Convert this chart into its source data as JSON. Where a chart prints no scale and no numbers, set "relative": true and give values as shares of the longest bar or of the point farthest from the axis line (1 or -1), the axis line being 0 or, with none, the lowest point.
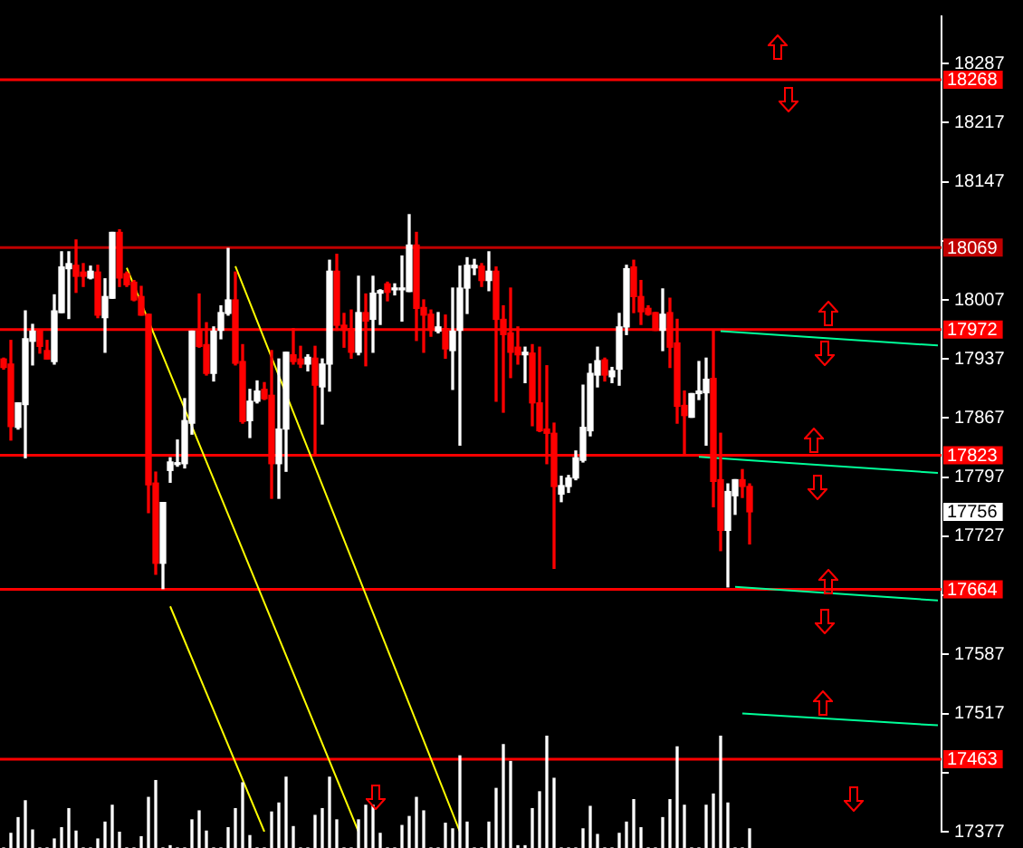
{
  "chart_data": [
    {
      "type": "candlestick",
      "legend": false,
      "grid": false,
      "tick_labels": "y",
      "categories": [
        null,
        null,
        null,
        null,
        null,
        null,
        null,
        null,
        null,
        null,
        null,
        null,
        null,
        null,
        null,
        null,
        null,
        null,
        null,
        null,
        null,
        null,
        null,
        null,
        null,
        null,
        null,
        null,
        null,
        null,
        null,
        null,
        null,
        null,
        null,
        null,
        null,
        null,
        null,
        null,
        null,
        null,
        null,
        null,
        null,
        null,
        null,
        null,
        null,
        null,
        null,
        null,
        null,
        null,
        null,
        null,
        null,
        null,
        null,
        null,
        null,
        null,
        null,
        null,
        null,
        null,
        null,
        null,
        null,
        null,
        null,
        null,
        null,
        null,
        null,
        null,
        null,
        null,
        null,
        null,
        null,
        null,
        null,
        null,
        null,
        null,
        null,
        null,
        null,
        null,
        null,
        null,
        null,
        null,
        null,
        null,
        null,
        null,
        null,
        null,
        null,
        null,
        null,
        null,
        null,
        null,
        null,
        null,
        null,
        null,
        null,
        null,
        null,
        null,
        null,
        null,
        null,
        null,
        null,
        null,
        null,
        null,
        null,
        null,
        null,
        null,
        null,
        null,
        null,
        null
      ],
      "ohlc": [
        [
          17937,
          17938,
          17925,
          17927
        ],
        [
          17931,
          17959,
          17841,
          17857
        ],
        [
          17856,
          17885,
          17854,
          17885
        ],
        [
          17883,
          17994,
          17820,
          17961
        ],
        [
          17958,
          17978,
          17930,
          17970
        ],
        [
          17970,
          17970,
          17944,
          17952
        ],
        [
          17947,
          17959,
          17937,
          17937
        ],
        [
          17934,
          18013,
          17931,
          17994
        ],
        [
          17992,
          18064,
          17992,
          18046
        ],
        [
          18044,
          18064,
          17985,
          18050
        ],
        [
          18048,
          18078,
          18016,
          18035
        ],
        [
          18040,
          18050,
          18023,
          18035
        ],
        [
          18033,
          18047,
          18032,
          18041
        ],
        [
          18040,
          18048,
          17986,
          17989
        ],
        [
          17986,
          18032,
          17945,
          18011
        ],
        [
          18009,
          18087,
          18009,
          18087
        ],
        [
          18087,
          18090,
          18023,
          18033
        ],
        [
          18038,
          18040,
          18023,
          18025
        ],
        [
          18028,
          18030,
          18006,
          18007
        ],
        [
          18011,
          18023,
          17989,
          17989
        ],
        [
          17990,
          17990,
          17755,
          17788
        ],
        [
          17790,
          17803,
          17682,
          17695
        ],
        [
          17695,
          17767,
          17665,
          17767
        ],
        [
          17805,
          17820,
          17791,
          17815
        ],
        [
          17812,
          17841,
          17810,
          17813
        ],
        [
          17813,
          17890,
          17808,
          17864
        ],
        [
          17861,
          17970,
          17848,
          17970
        ],
        [
          17970,
          18014,
          17951,
          17952
        ],
        [
          17954,
          17980,
          17918,
          17920
        ],
        [
          17920,
          17975,
          17911,
          17970
        ],
        [
          17971,
          18000,
          17961,
          17992
        ],
        [
          17991,
          18068,
          17989,
          18007
        ],
        [
          18007,
          18040,
          17930,
          17932
        ],
        [
          17934,
          17954,
          17861,
          17863
        ],
        [
          17864,
          17901,
          17844,
          17887
        ],
        [
          17887,
          17911,
          17885,
          17899
        ],
        [
          17901,
          17909,
          17889,
          17890
        ],
        [
          17894,
          17947,
          17772,
          17813
        ],
        [
          17813,
          17937,
          17772,
          17854
        ],
        [
          17854,
          17945,
          17804,
          17945
        ],
        [
          17942,
          17973,
          17931,
          17934
        ],
        [
          17937,
          17952,
          17927,
          17931
        ],
        [
          17931,
          17942,
          17923,
          17939
        ],
        [
          17938,
          17952,
          17823,
          17906
        ],
        [
          17904,
          17937,
          17860,
          17931
        ],
        [
          17931,
          18054,
          17899,
          18041
        ],
        [
          18041,
          18061,
          17971,
          17977
        ],
        [
          17977,
          17991,
          17951,
          17971
        ],
        [
          17973,
          17995,
          17938,
          17945
        ],
        [
          17945,
          18035,
          17942,
          17992
        ],
        [
          17992,
          18014,
          17929,
          17982
        ],
        [
          17984,
          18035,
          17945,
          18015
        ],
        [
          18015,
          18019,
          17978,
          18018
        ],
        [
          18026,
          18028,
          18006,
          18016
        ],
        [
          18019,
          18026,
          18013,
          18021
        ],
        [
          18019,
          18059,
          17982,
          18021
        ],
        [
          18017,
          18108,
          18017,
          18072
        ],
        [
          18072,
          18087,
          17959,
          17997
        ],
        [
          17998,
          18007,
          17945,
          17989
        ],
        [
          17990,
          17995,
          17964,
          17971
        ],
        [
          17970,
          17992,
          17968,
          17975
        ],
        [
          17973,
          17989,
          17938,
          17949
        ],
        [
          17947,
          18021,
          17901,
          17970
        ],
        [
          17971,
          18047,
          17835,
          18021
        ],
        [
          18021,
          18057,
          17991,
          18048
        ],
        [
          18045,
          18055,
          18037,
          18048
        ],
        [
          18047,
          18050,
          18023,
          18030
        ],
        [
          18030,
          18064,
          18018,
          18041
        ],
        [
          18041,
          18046,
          17887,
          17984
        ],
        [
          17984,
          18000,
          17874,
          17966
        ],
        [
          17968,
          18021,
          17915,
          17945
        ],
        [
          17951,
          17975,
          17931,
          17942
        ],
        [
          17942,
          17951,
          17909,
          17945
        ],
        [
          17944,
          17954,
          17858,
          17885
        ],
        [
          17885,
          17951,
          17851,
          17852
        ],
        [
          17854,
          17929,
          17813,
          17849
        ],
        [
          17849,
          17861,
          17689,
          17786
        ],
        [
          17777,
          17798,
          17768,
          17787
        ],
        [
          17786,
          17799,
          17779,
          17796
        ],
        [
          17796,
          17828,
          17794,
          17820
        ],
        [
          17817,
          17906,
          17815,
          17856
        ],
        [
          17852,
          17931,
          17846,
          17920
        ],
        [
          17918,
          17951,
          17904,
          17935
        ],
        [
          17936,
          17938,
          17911,
          17918
        ],
        [
          17916,
          17927,
          17909,
          17923
        ],
        [
          17925,
          17991,
          17906,
          17975
        ],
        [
          17975,
          18048,
          17966,
          18044
        ],
        [
          18046,
          18054,
          17992,
          18011
        ],
        [
          18011,
          18030,
          17978,
          17993
        ],
        [
          17997,
          18000,
          17989,
          17990
        ],
        [
          17992,
          17992,
          17971,
          17971
        ],
        [
          17971,
          18020,
          17947,
          17990
        ],
        [
          17992,
          18009,
          17927,
          17951
        ],
        [
          17956,
          17984,
          17861,
          17881
        ],
        [
          17882,
          17899,
          17823,
          17870
        ],
        [
          17868,
          17896,
          17868,
          17896
        ],
        [
          17896,
          17934,
          17889,
          17899
        ],
        [
          17897,
          17938,
          17835,
          17913
        ],
        [
          17914,
          17971,
          17762,
          17792
        ],
        [
          17794,
          17849,
          17710,
          17734
        ],
        [
          17734,
          17789,
          17667,
          17780
        ],
        [
          17775,
          17794,
          17753,
          17794
        ],
        [
          17794,
          17806,
          17773,
          17786
        ],
        [
          17786,
          17789,
          17718,
          17756
        ],
        null,
        null,
        null,
        null,
        null,
        null,
        null,
        null,
        null,
        null,
        null,
        null,
        null,
        null,
        null,
        null,
        null,
        null,
        null,
        null,
        null,
        null,
        null,
        null,
        null,
        null
      ],
      "colors": [
        "#ff0000",
        "#ff0000",
        "#ffffff",
        "#ffffff",
        "#ffffff",
        "#ff0000",
        "#ff0000",
        "#ffffff",
        "#ffffff",
        "#ffffff",
        "#ff0000",
        "#ff0000",
        "#ffffff",
        "#ff0000",
        "#ffffff",
        "#ffffff",
        "#ff0000",
        "#ff0000",
        "#ff0000",
        "#ff0000",
        "#ff0000",
        "#ff0000",
        "#ffffff",
        "#ffffff",
        "#ffffff",
        "#ffffff",
        "#ffffff",
        "#ff0000",
        "#ff0000",
        "#ffffff",
        "#ffffff",
        "#ffffff",
        "#ff0000",
        "#ff0000",
        "#ffffff",
        "#ffffff",
        "#ff0000",
        "#ff0000",
        "#ffffff",
        "#ffffff",
        "#ff0000",
        "#ff0000",
        "#ffffff",
        "#ff0000",
        "#ffffff",
        "#ffffff",
        "#ff0000",
        "#ff0000",
        "#ff0000",
        "#ffffff",
        "#ff0000",
        "#ffffff",
        "#ffffff",
        "#ff0000",
        "#ffffff",
        "#ffffff",
        "#ffffff",
        "#ff0000",
        "#ff0000",
        "#ff0000",
        "#ffffff",
        "#ff0000",
        "#ffffff",
        "#ffffff",
        "#ffffff",
        "#ffffff",
        "#ff0000",
        "#ffffff",
        "#ff0000",
        "#ff0000",
        "#ff0000",
        "#ff0000",
        "#ffffff",
        "#ff0000",
        "#ff0000",
        "#ff0000",
        "#ff0000",
        "#ffffff",
        "#ffffff",
        "#ffffff",
        "#ffffff",
        "#ffffff",
        "#ffffff",
        "#ff0000",
        "#ffffff",
        "#ffffff",
        "#ffffff",
        "#ff0000",
        "#ff0000",
        "#ff0000",
        "#ff0000",
        "#ffffff",
        "#ff0000",
        "#ff0000",
        "#ff0000",
        "#ffffff",
        "#ffffff",
        "#ffffff",
        "#ff0000",
        "#ff0000",
        "#ffffff",
        "#ffffff",
        "#ff0000",
        "#ff0000",
        null,
        null,
        null,
        null,
        null,
        null,
        null,
        null,
        null,
        null,
        null,
        null,
        null,
        null,
        null,
        null,
        null,
        null,
        null,
        null,
        null,
        null,
        null,
        null,
        null,
        null
      ],
      "series": [
        {
          "type": "line",
          "color": "#ffff00",
          "values": [
            null,
            null,
            null,
            null,
            null,
            null,
            null,
            null,
            null,
            null,
            null,
            null,
            null,
            null,
            null,
            null,
            null,
            18045,
            null,
            null,
            null,
            null,
            null,
            null,
            null,
            null,
            null,
            null,
            null,
            null,
            null,
            null,
            null,
            null,
            null,
            null,
            null,
            null,
            null,
            null,
            null,
            null,
            null,
            null,
            null,
            null,
            null,
            null,
            null,
            17377,
            null,
            null,
            null,
            null,
            null,
            null,
            null,
            null,
            null,
            null,
            null,
            null,
            null,
            null,
            null,
            null,
            null,
            null,
            null,
            null,
            null,
            null,
            null,
            null,
            null,
            null,
            null,
            null,
            null,
            null,
            null,
            null,
            null,
            null,
            null,
            null,
            null,
            null,
            null,
            null,
            null,
            null,
            null,
            null,
            null,
            null,
            null,
            null,
            null,
            null,
            null,
            null,
            null,
            null,
            null,
            null,
            null,
            null,
            null,
            null,
            null,
            null,
            null,
            null,
            null,
            null,
            null,
            null,
            null,
            null,
            null,
            null,
            null,
            null,
            null,
            null,
            null,
            null,
            null,
            null
          ]
        },
        {
          "type": "line",
          "color": "#ffff00",
          "values": [
            null,
            null,
            null,
            null,
            null,
            null,
            null,
            null,
            null,
            null,
            null,
            null,
            null,
            null,
            null,
            null,
            null,
            null,
            null,
            null,
            null,
            null,
            null,
            null,
            null,
            null,
            null,
            null,
            null,
            null,
            null,
            null,
            18047,
            null,
            null,
            null,
            null,
            null,
            null,
            null,
            null,
            null,
            null,
            null,
            null,
            null,
            null,
            null,
            null,
            null,
            null,
            null,
            null,
            null,
            null,
            null,
            null,
            null,
            null,
            null,
            null,
            null,
            null,
            17377,
            null,
            null,
            null,
            null,
            null,
            null,
            null,
            null,
            null,
            null,
            null,
            null,
            null,
            null,
            null,
            null,
            null,
            null,
            null,
            null,
            null,
            null,
            null,
            null,
            null,
            null,
            null,
            null,
            null,
            null,
            null,
            null,
            null,
            null,
            null,
            null,
            null,
            null,
            null,
            null,
            null,
            null,
            null,
            null,
            null,
            null,
            null,
            null,
            null,
            null,
            null,
            null,
            null,
            null,
            null,
            null,
            null,
            null,
            null,
            null,
            null,
            null,
            null,
            null,
            null,
            null
          ]
        },
        {
          "type": "line",
          "color": "#ffff00",
          "values": [
            null,
            null,
            null,
            null,
            null,
            null,
            null,
            null,
            null,
            null,
            null,
            null,
            null,
            null,
            null,
            null,
            null,
            null,
            null,
            null,
            null,
            null,
            null,
            17644,
            null,
            null,
            null,
            null,
            null,
            null,
            null,
            null,
            null,
            null,
            null,
            null,
            17377,
            null,
            null,
            null,
            null,
            null,
            null,
            null,
            null,
            null,
            null,
            null,
            null,
            null,
            null,
            null,
            null,
            null,
            null,
            null,
            null,
            null,
            null,
            null,
            null,
            null,
            null,
            null,
            null,
            null,
            null,
            null,
            null,
            null,
            null,
            null,
            null,
            null,
            null,
            null,
            null,
            null,
            null,
            null,
            null,
            null,
            null,
            null,
            null,
            null,
            null,
            null,
            null,
            null,
            null,
            null,
            null,
            null,
            null,
            null,
            null,
            null,
            null,
            null,
            null,
            null,
            null,
            null,
            null,
            null,
            null,
            null,
            null,
            null,
            null,
            null,
            null,
            null,
            null,
            null,
            null,
            null,
            null,
            null,
            null,
            null,
            null,
            null,
            null,
            null,
            null,
            null,
            null,
            null
          ]
        },
        {
          "type": "line",
          "color": "#00ff99",
          "values": [
            null,
            null,
            null,
            null,
            null,
            null,
            null,
            null,
            null,
            null,
            null,
            null,
            null,
            null,
            null,
            null,
            null,
            null,
            null,
            null,
            null,
            null,
            null,
            null,
            null,
            null,
            null,
            null,
            null,
            null,
            null,
            null,
            null,
            null,
            null,
            null,
            null,
            null,
            null,
            null,
            null,
            null,
            null,
            null,
            null,
            null,
            null,
            null,
            null,
            null,
            null,
            null,
            null,
            null,
            null,
            null,
            null,
            null,
            null,
            null,
            null,
            null,
            null,
            null,
            null,
            null,
            null,
            null,
            null,
            null,
            null,
            null,
            null,
            null,
            null,
            null,
            null,
            null,
            null,
            null,
            null,
            null,
            null,
            null,
            null,
            null,
            null,
            null,
            null,
            null,
            null,
            null,
            null,
            null,
            null,
            null,
            null,
            null,
            null,
            17970,
            null,
            null,
            null,
            null,
            null,
            null,
            null,
            null,
            null,
            null,
            null,
            null,
            null,
            null,
            null,
            null,
            null,
            null,
            null,
            null,
            null,
            null,
            null,
            null,
            null,
            null,
            null,
            null,
            null,
            17953
          ]
        },
        {
          "type": "line",
          "color": "#00ff99",
          "values": [
            null,
            null,
            null,
            null,
            null,
            null,
            null,
            null,
            null,
            null,
            null,
            null,
            null,
            null,
            null,
            null,
            null,
            null,
            null,
            null,
            null,
            null,
            null,
            null,
            null,
            null,
            null,
            null,
            null,
            null,
            null,
            null,
            null,
            null,
            null,
            null,
            null,
            null,
            null,
            null,
            null,
            null,
            null,
            null,
            null,
            null,
            null,
            null,
            null,
            null,
            null,
            null,
            null,
            null,
            null,
            null,
            null,
            null,
            null,
            null,
            null,
            null,
            null,
            null,
            null,
            null,
            null,
            null,
            null,
            null,
            null,
            null,
            null,
            null,
            null,
            null,
            null,
            null,
            null,
            null,
            null,
            null,
            null,
            null,
            null,
            null,
            null,
            null,
            null,
            null,
            null,
            null,
            null,
            null,
            null,
            null,
            17821,
            null,
            null,
            null,
            null,
            null,
            null,
            null,
            null,
            null,
            null,
            null,
            null,
            null,
            null,
            null,
            null,
            null,
            null,
            null,
            null,
            null,
            null,
            null,
            null,
            null,
            null,
            null,
            null,
            null,
            null,
            null,
            null,
            17802
          ]
        },
        {
          "type": "line",
          "color": "#00ff99",
          "values": [
            null,
            null,
            null,
            null,
            null,
            null,
            null,
            null,
            null,
            null,
            null,
            null,
            null,
            null,
            null,
            null,
            null,
            null,
            null,
            null,
            null,
            null,
            null,
            null,
            null,
            null,
            null,
            null,
            null,
            null,
            null,
            null,
            null,
            null,
            null,
            null,
            null,
            null,
            null,
            null,
            null,
            null,
            null,
            null,
            null,
            null,
            null,
            null,
            null,
            null,
            null,
            null,
            null,
            null,
            null,
            null,
            null,
            null,
            null,
            null,
            null,
            null,
            null,
            null,
            null,
            null,
            null,
            null,
            null,
            null,
            null,
            null,
            null,
            null,
            null,
            null,
            null,
            null,
            null,
            null,
            null,
            null,
            null,
            null,
            null,
            null,
            null,
            null,
            null,
            null,
            null,
            null,
            null,
            null,
            null,
            null,
            null,
            null,
            null,
            null,
            null,
            17667,
            null,
            null,
            null,
            null,
            null,
            null,
            null,
            null,
            null,
            null,
            null,
            null,
            null,
            null,
            null,
            null,
            null,
            null,
            null,
            null,
            null,
            null,
            null,
            null,
            null,
            null,
            null,
            17651
          ]
        },
        {
          "type": "line",
          "color": "#00ff99",
          "values": [
            null,
            null,
            null,
            null,
            null,
            null,
            null,
            null,
            null,
            null,
            null,
            null,
            null,
            null,
            null,
            null,
            null,
            null,
            null,
            null,
            null,
            null,
            null,
            null,
            null,
            null,
            null,
            null,
            null,
            null,
            null,
            null,
            null,
            null,
            null,
            null,
            null,
            null,
            null,
            null,
            null,
            null,
            null,
            null,
            null,
            null,
            null,
            null,
            null,
            null,
            null,
            null,
            null,
            null,
            null,
            null,
            null,
            null,
            null,
            null,
            null,
            null,
            null,
            null,
            null,
            null,
            null,
            null,
            null,
            null,
            null,
            null,
            null,
            null,
            null,
            null,
            null,
            null,
            null,
            null,
            null,
            null,
            null,
            null,
            null,
            null,
            null,
            null,
            null,
            null,
            null,
            null,
            null,
            null,
            null,
            null,
            null,
            null,
            null,
            null,
            null,
            null,
            17517,
            null,
            null,
            null,
            null,
            null,
            null,
            null,
            null,
            null,
            null,
            null,
            null,
            null,
            null,
            null,
            null,
            null,
            null,
            null,
            null,
            null,
            null,
            null,
            null,
            null,
            null,
            17503
          ]
        }
      ],
      "ylim": [
        17377,
        18343
      ],
      "yticks": [
        18287,
        18217,
        18147,
        {
          "value": 18077,
          "label": null
        },
        18007,
        17937,
        17867,
        17797,
        17727,
        {
          "value": 17657,
          "label": null
        },
        17587,
        17517,
        {
          "value": 17447,
          "label": null
        },
        17377
      ],
      "ref_lines": [
        {
          "axis": "y",
          "value": 18268,
          "label": "18268",
          "color": "#ff0000"
        },
        {
          "axis": "y",
          "value": 18069,
          "label": "18069",
          "color": "#c00000"
        },
        {
          "axis": "y",
          "value": 17972,
          "label": "17972",
          "color": "#ff0000"
        },
        {
          "axis": "y",
          "value": 17823,
          "label": "17823",
          "color": "#ff0000"
        },
        {
          "axis": "y",
          "value": 17664,
          "label": "17664",
          "color": "#ff0000"
        },
        {
          "axis": "y",
          "value": 17463,
          "label": "17463",
          "color": "#ff0000"
        }
      ],
      "annotations": [
        {
          "text": "17756",
          "y": 17756
        }
      ]
    },
    {
      "type": "bar",
      "relative": true,
      "legend": false,
      "grid": false,
      "tick_labels": false,
      "color": "#ffffff",
      "categories": [
        null,
        null,
        null,
        null,
        null,
        null,
        null,
        null,
        null,
        null,
        null,
        null,
        null,
        null,
        null,
        null,
        null,
        null,
        null,
        null,
        null,
        null,
        null,
        null,
        null,
        null,
        null,
        null,
        null,
        null,
        null,
        null,
        null,
        null,
        null,
        null,
        null,
        null,
        null,
        null,
        null,
        null,
        null,
        null,
        null,
        null,
        null,
        null,
        null,
        null,
        null,
        null,
        null,
        null,
        null,
        null,
        null,
        null,
        null,
        null,
        null,
        null,
        null,
        null,
        null,
        null,
        null,
        null,
        null,
        null,
        null,
        null,
        null,
        null,
        null,
        null,
        null,
        null,
        null,
        null,
        null,
        null,
        null,
        null,
        null,
        null,
        null,
        null,
        null,
        null,
        null,
        null,
        null,
        null,
        null,
        null,
        null,
        null,
        null,
        null,
        null,
        null,
        null,
        null,
        null,
        null,
        null,
        null,
        null,
        null,
        null,
        null,
        null,
        null,
        null,
        null,
        null,
        null,
        null,
        null,
        null,
        null,
        null,
        null,
        null,
        null,
        null,
        null,
        null,
        null
      ],
      "values": [
        0,
        0.13,
        0.27,
        0.42,
        0.16,
        0,
        0,
        0.08,
        0.18,
        0.35,
        0.15,
        0,
        0,
        0.08,
        0.23,
        0.38,
        0.14,
        0,
        0,
        0.1,
        0.45,
        0.6,
        0,
        0.02,
        0,
        0,
        0.25,
        0.33,
        0.15,
        0,
        0,
        0.18,
        0.35,
        0.58,
        0.11,
        0,
        0,
        0.32,
        0.4,
        0.63,
        0.19,
        0,
        0,
        0.29,
        0.35,
        0.63,
        0.25,
        0,
        0,
        0.25,
        0.38,
        0.38,
        0.13,
        0,
        0,
        0.2,
        0.28,
        0.45,
        0.33,
        0,
        0,
        0.22,
        0.17,
        0.82,
        0.23,
        0,
        0,
        0.23,
        0.53,
        0.92,
        0.77,
        0.02,
        0.02,
        0.35,
        0.5,
        1,
        0.62,
        0,
        0,
        0,
        0.17,
        0.37,
        0.12,
        0,
        0,
        0.13,
        0.23,
        0.43,
        0.18,
        0,
        0,
        0.27,
        0.43,
        0.9,
        0.38,
        0,
        0,
        0.38,
        0.48,
        1,
        0.4,
        0,
        0,
        0.17,
        null,
        null,
        null,
        null,
        null,
        null,
        null,
        null,
        null,
        null,
        null,
        null,
        null,
        null,
        null,
        null,
        null,
        null,
        null,
        null,
        null,
        null,
        null,
        null,
        null,
        null
      ]
    }
  ]
}
